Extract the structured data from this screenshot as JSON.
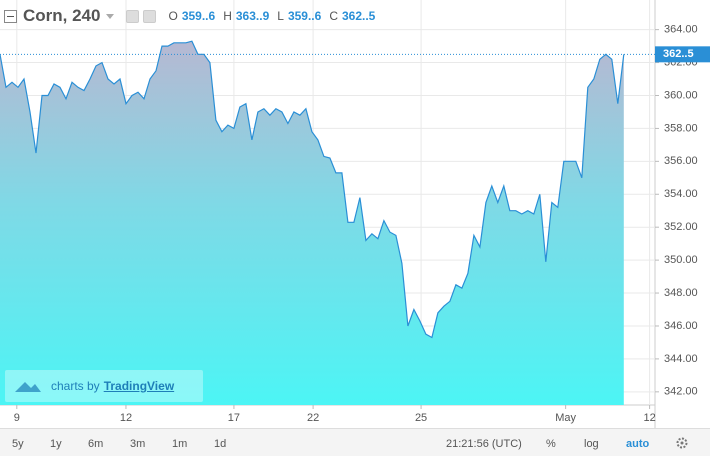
{
  "header": {
    "symbol": "Corn, 240",
    "ohlc": [
      {
        "key": "O",
        "value": "359..6"
      },
      {
        "key": "H",
        "value": "363..9"
      },
      {
        "key": "L",
        "value": "359..6"
      },
      {
        "key": "C",
        "value": "362..5"
      }
    ]
  },
  "chart_data": {
    "type": "area",
    "color": "#2a8fd6",
    "grid": true,
    "values": [
      362.5,
      360.5,
      360.8,
      360.5,
      361.0,
      359.0,
      356.5,
      360.0,
      360.0,
      360.7,
      360.5,
      359.8,
      360.8,
      360.5,
      360.3,
      361.0,
      361.8,
      362.0,
      361.0,
      360.7,
      361.0,
      359.5,
      360.0,
      360.2,
      359.8,
      361.0,
      361.5,
      363.0,
      363.0,
      363.2,
      363.2,
      363.2,
      363.3,
      362.5,
      362.5,
      362.0,
      358.5,
      357.8,
      358.2,
      358.0,
      359.3,
      359.5,
      357.3,
      359.0,
      359.2,
      358.8,
      359.2,
      359.0,
      358.3,
      359.0,
      358.8,
      359.2,
      357.8,
      357.3,
      356.3,
      356.2,
      355.3,
      355.3,
      352.3,
      352.3,
      353.8,
      351.2,
      351.6,
      351.3,
      352.4,
      351.7,
      351.5,
      349.8,
      346.0,
      347.0,
      346.3,
      345.5,
      345.3,
      346.8,
      347.2,
      347.5,
      348.5,
      348.3,
      349.2,
      351.5,
      350.8,
      353.5,
      354.5,
      353.5,
      354.5,
      353.0,
      353.0,
      352.8,
      353.0,
      352.8,
      354.0,
      349.9,
      353.5,
      353.2,
      356.0,
      356.0,
      356.0,
      355.0,
      360.5,
      361.0,
      362.2,
      362.5,
      362.2,
      359.5,
      362.5
    ],
    "xlim": [
      0,
      109.2
    ],
    "xticks": [
      {
        "value": 2.8,
        "label": "9"
      },
      {
        "value": 21,
        "label": "12"
      },
      {
        "value": 39,
        "label": "17"
      },
      {
        "value": 52.2,
        "label": "22"
      },
      {
        "value": 70.2,
        "label": "25"
      },
      {
        "value": 94.3,
        "label": "May"
      },
      {
        "value": 108.3,
        "label": "12"
      }
    ],
    "ylim": [
      341.2,
      365.8
    ],
    "yticks": [
      {
        "value": 342,
        "label": "342.00"
      },
      {
        "value": 344,
        "label": "344.00"
      },
      {
        "value": 346,
        "label": "346.00"
      },
      {
        "value": 348,
        "label": "348.00"
      },
      {
        "value": 350,
        "label": "350.00"
      },
      {
        "value": 352,
        "label": "352.00"
      },
      {
        "value": 354,
        "label": "354.00"
      },
      {
        "value": 356,
        "label": "356.00"
      },
      {
        "value": 358,
        "label": "358.00"
      },
      {
        "value": 360,
        "label": "360.00"
      },
      {
        "value": 362,
        "label": "362.00"
      },
      {
        "value": 364,
        "label": "364.00"
      }
    ],
    "last_price": {
      "value": 362.5,
      "label": "362..5"
    }
  },
  "watermark": {
    "prefix": "charts by",
    "brand": "TradingView"
  },
  "toolbar": {
    "ranges": [
      "5y",
      "1y",
      "6m",
      "3m",
      "1m",
      "1d"
    ],
    "time": "21:21:56 (UTC)",
    "options": [
      "%",
      "log",
      "auto"
    ]
  }
}
